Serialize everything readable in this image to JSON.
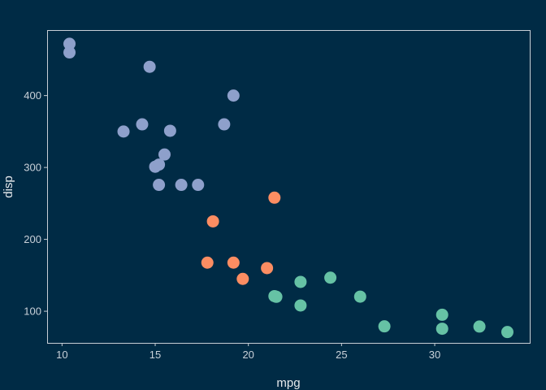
{
  "chart_data": {
    "type": "scatter",
    "title": "",
    "xlabel": "mpg",
    "ylabel": "disp",
    "xlim": [
      9.2,
      35.1
    ],
    "ylim": [
      56,
      490
    ],
    "xticks": [
      10,
      15,
      20,
      25,
      30
    ],
    "yticks": [
      100,
      200,
      300,
      400
    ],
    "grid": false,
    "legend": "none",
    "background": "#002b45",
    "panel_border": "#c8cfd6",
    "series": [
      {
        "color": "#8ea0cb",
        "points": [
          {
            "x": 10.4,
            "y": 472
          },
          {
            "x": 10.4,
            "y": 460
          },
          {
            "x": 14.7,
            "y": 440
          },
          {
            "x": 19.2,
            "y": 400
          },
          {
            "x": 14.3,
            "y": 360
          },
          {
            "x": 18.7,
            "y": 360
          },
          {
            "x": 13.3,
            "y": 350
          },
          {
            "x": 15.8,
            "y": 351
          },
          {
            "x": 15.5,
            "y": 318
          },
          {
            "x": 15.0,
            "y": 301
          },
          {
            "x": 15.2,
            "y": 304
          },
          {
            "x": 15.2,
            "y": 275.8
          },
          {
            "x": 16.4,
            "y": 275.8
          },
          {
            "x": 17.3,
            "y": 275.8
          }
        ]
      },
      {
        "color": "#fc8d62",
        "points": [
          {
            "x": 21.4,
            "y": 258
          },
          {
            "x": 18.1,
            "y": 225
          },
          {
            "x": 17.8,
            "y": 167.6
          },
          {
            "x": 19.2,
            "y": 167.6
          },
          {
            "x": 21.0,
            "y": 160
          },
          {
            "x": 19.7,
            "y": 145
          }
        ]
      },
      {
        "color": "#66c2a5",
        "points": [
          {
            "x": 24.4,
            "y": 146.7
          },
          {
            "x": 22.8,
            "y": 140.8
          },
          {
            "x": 21.4,
            "y": 121
          },
          {
            "x": 21.5,
            "y": 120.1
          },
          {
            "x": 26.0,
            "y": 120.3
          },
          {
            "x": 22.8,
            "y": 108
          },
          {
            "x": 30.4,
            "y": 95.1
          },
          {
            "x": 27.3,
            "y": 79
          },
          {
            "x": 32.4,
            "y": 78.7
          },
          {
            "x": 30.4,
            "y": 75.7
          },
          {
            "x": 33.9,
            "y": 71.1
          }
        ]
      }
    ]
  }
}
